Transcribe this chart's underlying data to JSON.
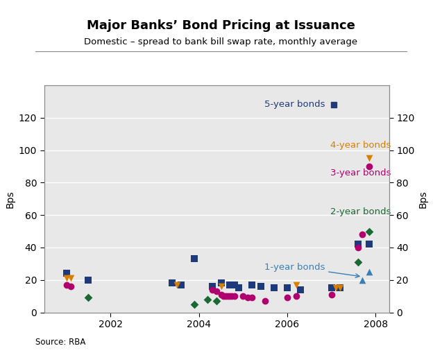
{
  "title": "Major Banks’ Bond Pricing at Issuance",
  "subtitle": "Domestic – spread to bank bill swap rate, monthly average",
  "ylabel": "Bps",
  "source": "Source: RBA",
  "xlim": [
    2000.5,
    2008.3
  ],
  "ylim": [
    0,
    140
  ],
  "yticks": [
    0,
    20,
    40,
    60,
    80,
    100,
    120
  ],
  "xticks": [
    2002,
    2004,
    2006,
    2008
  ],
  "series_5yr": {
    "label": "5-year bonds",
    "color": "#1F3A7A",
    "marker": "s",
    "data": [
      [
        2001.0,
        24
      ],
      [
        2001.5,
        20
      ],
      [
        2003.4,
        18
      ],
      [
        2003.6,
        17
      ],
      [
        2003.9,
        33
      ],
      [
        2004.3,
        16
      ],
      [
        2004.5,
        18
      ],
      [
        2004.7,
        17
      ],
      [
        2004.8,
        17
      ],
      [
        2004.9,
        15
      ],
      [
        2005.2,
        17
      ],
      [
        2005.4,
        16
      ],
      [
        2005.7,
        15
      ],
      [
        2006.0,
        15
      ],
      [
        2006.3,
        14
      ],
      [
        2007.0,
        15
      ],
      [
        2007.2,
        15
      ],
      [
        2007.6,
        42
      ],
      [
        2007.85,
        42
      ]
    ]
  },
  "series_4yr": {
    "label": "4-year bonds",
    "color": "#D97F00",
    "marker": "v",
    "data": [
      [
        2001.0,
        21
      ],
      [
        2001.1,
        21
      ],
      [
        2003.5,
        17
      ],
      [
        2004.5,
        16
      ],
      [
        2006.2,
        17
      ],
      [
        2007.1,
        15
      ],
      [
        2007.2,
        15
      ],
      [
        2007.85,
        95
      ]
    ]
  },
  "series_3yr": {
    "label": "3-year bonds",
    "color": "#B0006D",
    "marker": "o",
    "data": [
      [
        2001.0,
        17
      ],
      [
        2001.1,
        16
      ],
      [
        2004.3,
        14
      ],
      [
        2004.4,
        13
      ],
      [
        2004.5,
        11
      ],
      [
        2004.55,
        10
      ],
      [
        2004.6,
        10
      ],
      [
        2004.65,
        10
      ],
      [
        2004.7,
        10
      ],
      [
        2004.75,
        10
      ],
      [
        2004.8,
        10
      ],
      [
        2005.0,
        10
      ],
      [
        2005.1,
        9
      ],
      [
        2005.2,
        9
      ],
      [
        2005.5,
        7
      ],
      [
        2006.0,
        9
      ],
      [
        2006.2,
        10
      ],
      [
        2007.0,
        11
      ],
      [
        2007.6,
        40
      ],
      [
        2007.7,
        48
      ],
      [
        2007.85,
        90
      ]
    ]
  },
  "series_2yr": {
    "label": "2-year bonds",
    "color": "#1B6832",
    "marker": "D",
    "data": [
      [
        2001.5,
        9
      ],
      [
        2003.9,
        5
      ],
      [
        2004.2,
        8
      ],
      [
        2004.4,
        7
      ],
      [
        2007.6,
        31
      ],
      [
        2007.85,
        50
      ]
    ]
  },
  "series_1yr": {
    "label": "1-year bonds",
    "color": "#3A7EB5",
    "marker": "^",
    "data": [
      [
        2007.7,
        20
      ],
      [
        2007.85,
        25
      ]
    ]
  },
  "background_color": "#E8E8E8"
}
